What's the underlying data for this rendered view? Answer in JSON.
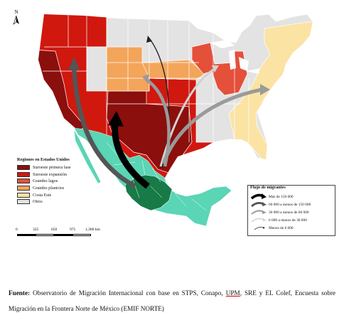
{
  "north_label": "N",
  "colors": {
    "suroeste_primera": "#8b0f0c",
    "suroeste_expansion": "#d0180f",
    "grandes_lagos": "#e4503a",
    "grandes_planicies": "#f3a55a",
    "costa_este": "#fbe3a4",
    "otros": "#e3e3e3",
    "mexico_light": "#5ad5b5",
    "mexico_dark": "#187a47",
    "arrow_black": "#000000",
    "arrow_dark": "#555555",
    "arrow_mid": "#9a9a9a",
    "arrow_light": "#d2d2d2"
  },
  "legend_regions": {
    "title": "Regiones en Estados Unidos",
    "items": [
      {
        "label": "Suroeste primera fase",
        "color": "#8b0f0c"
      },
      {
        "label": "Suroeste expansión",
        "color": "#d0180f"
      },
      {
        "label": "Grandes lagos",
        "color": "#e4503a"
      },
      {
        "label": "Grandes planicies",
        "color": "#f3a55a"
      },
      {
        "label": "Costa Este",
        "color": "#fbe3a4"
      },
      {
        "label": "Otros",
        "color": "#e3e3e3"
      }
    ]
  },
  "scale": {
    "ticks": [
      "0",
      "325",
      "650",
      "975",
      "1,300 km"
    ]
  },
  "legend_flows": {
    "title": "Flujo de migrantes",
    "items": [
      {
        "label": "Más de 150 000",
        "icon": "arrow-black-icon"
      },
      {
        "label": "60 000 a menos de 150 000",
        "icon": "arrow-dark-gray-icon"
      },
      {
        "label": "30 000 a menos de 60 000",
        "icon": "arrow-gray-icon"
      },
      {
        "label": "6 000 a menos de 30 000",
        "icon": "arrow-light-gray-icon"
      },
      {
        "label": "Menos de 6 000",
        "icon": "arrow-thin-icon"
      }
    ]
  },
  "source": {
    "label": "Fuente:",
    "text_before": "Observatorio de Migración Internacional con base en STPS, Conapo,",
    "underlined": "UPM",
    "text_after": ", SRE y EL Colef, Encuesta sobre Migración en la Frontera Norte de México (EMIF NORTE)"
  }
}
